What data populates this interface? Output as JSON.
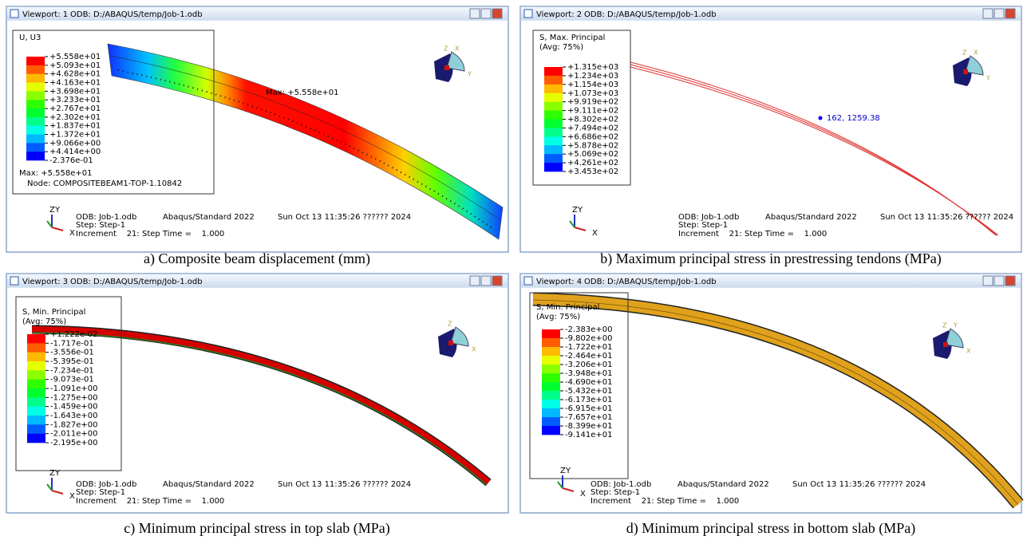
{
  "viewports": [
    {
      "label": "Viewport: 1",
      "title": "ODB: D:/ABAQUS/temp/Job-1.odb",
      "legend": {
        "title": [
          "U, U3"
        ],
        "labels": [
          "+5.558e+01",
          "+5.093e+01",
          "+4.628e+01",
          "+4.163e+01",
          "+3.698e+01",
          "+3.233e+01",
          "+2.767e+01",
          "+2.302e+01",
          "+1.837e+01",
          "+1.372e+01",
          "+9.066e+00",
          "+4.414e+00",
          "-2.376e-01"
        ],
        "footer": [
          "Max: +5.558e+01",
          "Node: COMPOSITEBEAM1-TOP-1.10842"
        ]
      },
      "annotation": "Max: +5.558e+01",
      "triad": [
        "Z",
        "Y",
        "X"
      ],
      "orientation": [
        "Z",
        "Y",
        "X"
      ],
      "info": {
        "odb": "ODB: Job-1.odb",
        "solver": "Abaqus/Standard 2022",
        "date": "Sun Oct 13 11:35:26 ?????? 2024",
        "step": "Step: Step-1",
        "increment": "Increment    21: Step Time =    1.000"
      },
      "caption": "a) Composite beam displacement (mm)"
    },
    {
      "label": "Viewport: 2",
      "title": "ODB: D:/ABAQUS/temp/Job-1.odb",
      "legend": {
        "title": [
          "S, Max. Principal",
          "(Avg: 75%)"
        ],
        "labels": [
          "+1.315e+03",
          "+1.234e+03",
          "+1.154e+03",
          "+1.073e+03",
          "+9.919e+02",
          "+9.111e+02",
          "+8.302e+02",
          "+7.494e+02",
          "+6.686e+02",
          "+5.878e+02",
          "+5.069e+02",
          "+4.261e+02",
          "+3.453e+02"
        ],
        "footer": []
      },
      "annotation": "162, 1259.38",
      "triad": [
        "Z",
        "Y",
        "X"
      ],
      "orientation": [
        "Z",
        "Y",
        "X"
      ],
      "info": {
        "odb": "ODB: Job-1.odb",
        "solver": "Abaqus/Standard 2022",
        "date": "Sun Oct 13 11:35:26 ?????? 2024",
        "step": "Step: Step-1",
        "increment": "Increment    21: Step Time =    1.000"
      },
      "caption": "b) Maximum principal stress in prestressing tendons (MPa)"
    },
    {
      "label": "Viewport: 3",
      "title": "ODB: D:/ABAQUS/temp/Job-1.odb",
      "legend": {
        "title": [
          "S, Min. Principal",
          "(Avg: 75%)"
        ],
        "labels": [
          "+1.222e-02",
          "-1.717e-01",
          "-3.556e-01",
          "-5.395e-01",
          "-7.234e-01",
          "-9.073e-01",
          "-1.091e+00",
          "-1.275e+00",
          "-1.459e+00",
          "-1.643e+00",
          "-1.827e+00",
          "-2.011e+00",
          "-2.195e+00"
        ],
        "footer": []
      },
      "annotation": null,
      "triad": [
        "Z",
        "Y",
        "X"
      ],
      "orientation": [
        "Z",
        "X"
      ],
      "info": {
        "odb": "ODB: Job-1.odb",
        "solver": "Abaqus/Standard 2022",
        "date": "Sun Oct 13 11:35:26 ?????? 2024",
        "step": "Step: Step-1",
        "increment": "Increment    21: Step Time =    1.000"
      },
      "caption": "c) Minimum principal stress in top slab (MPa)"
    },
    {
      "label": "Viewport: 4",
      "title": "ODB: D:/ABAQUS/temp/Job-1.odb",
      "legend": {
        "title": [
          "S, Min. Principal",
          "(Avg: 75%)"
        ],
        "labels": [
          "-2.383e+00",
          "-9.802e+00",
          "-1.722e+01",
          "-2.464e+01",
          "-3.206e+01",
          "-3.948e+01",
          "-4.690e+01",
          "-5.432e+01",
          "-6.173e+01",
          "-6.915e+01",
          "-7.657e+01",
          "-8.399e+01",
          "-9.141e+01"
        ],
        "footer": []
      },
      "annotation": null,
      "triad": [
        "Z",
        "Y",
        "X"
      ],
      "orientation": [
        "Z",
        "X",
        "Y"
      ],
      "info": {
        "odb": "ODB: Job-1.odb",
        "solver": "Abaqus/Standard 2022",
        "date": "Sun Oct 13 11:35:26 ?????? 2024",
        "step": "Step: Step-1",
        "increment": "Increment    21: Step Time =    1.000"
      },
      "caption": "d) Minimum principal stress in bottom slab (MPa)"
    }
  ]
}
